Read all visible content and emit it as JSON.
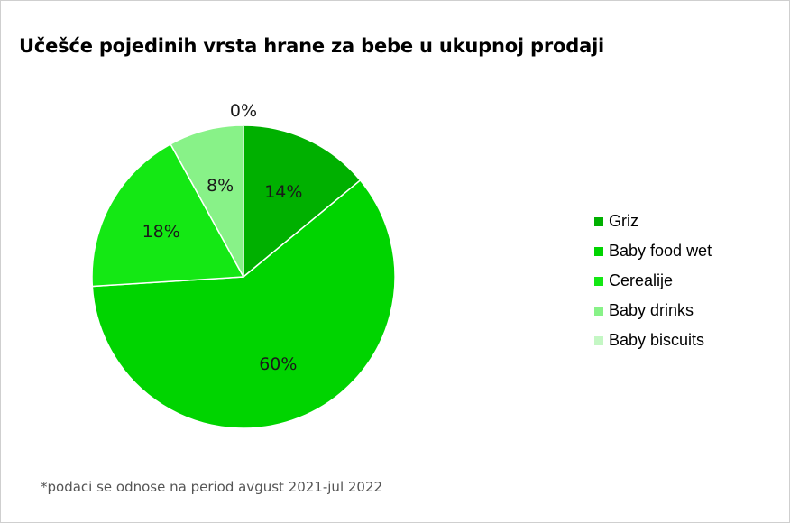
{
  "chart_data": {
    "type": "pie",
    "title": "Učešće pojedinih vrsta hrane za bebe u ukupnoj prodaji",
    "categories": [
      "Griz",
      "Baby food wet",
      "Cerealije",
      "Baby drinks",
      "Baby biscuits"
    ],
    "values": [
      14,
      60,
      18,
      8,
      0
    ],
    "labels": [
      "14%",
      "60%",
      "18%",
      "8%",
      "0%"
    ],
    "colors": [
      "#00b000",
      "#00d400",
      "#14e814",
      "#88f288",
      "#c4f7c4"
    ],
    "legend_position": "right",
    "footnote": "*podaci se odnose na period avgust 2021-jul 2022"
  }
}
